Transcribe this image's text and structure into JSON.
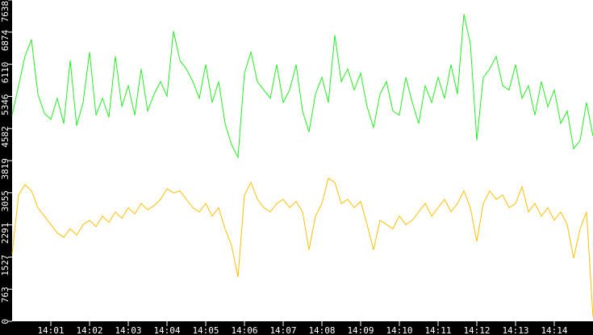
{
  "chart_data": {
    "type": "line",
    "title": "",
    "xlabel": "",
    "ylabel": "",
    "xlim": [
      "14:00:00",
      "14:15:00"
    ],
    "ylim": [
      0,
      7638
    ],
    "grid": false,
    "background": "#ffffff",
    "axis_color": "#000000",
    "x_ticks": [
      "14:01",
      "14:02",
      "14:03",
      "14:04",
      "14:05",
      "14:06",
      "14:07",
      "14:08",
      "14:09",
      "14:10",
      "14:11",
      "14:12",
      "14:13",
      "14:14"
    ],
    "y_ticks": [
      "0",
      "763",
      "1527",
      "2291",
      "3055",
      "3819",
      "4582",
      "5346",
      "6110",
      "6874",
      "7638"
    ],
    "series": [
      {
        "color": "#22ee22",
        "values": [
          4900,
          5600,
          6300,
          6700,
          5400,
          4950,
          4800,
          5300,
          4700,
          6200,
          4650,
          5200,
          6400,
          4900,
          5300,
          4850,
          6300,
          5100,
          5600,
          4900,
          6000,
          5000,
          5400,
          5700,
          5350,
          6900,
          6200,
          6000,
          5700,
          5300,
          6100,
          5200,
          5700,
          4700,
          4200,
          3900,
          5900,
          6400,
          5700,
          5500,
          5300,
          6100,
          5200,
          5500,
          6100,
          5000,
          4500,
          5400,
          5800,
          5200,
          6800,
          5700,
          6000,
          5500,
          5900,
          5100,
          4600,
          5400,
          5700,
          5000,
          4900,
          5800,
          5200,
          4700,
          5600,
          5200,
          5800,
          5300,
          6100,
          5400,
          7300,
          6600,
          4300,
          5800,
          6000,
          6300,
          5600,
          5500,
          6100,
          5300,
          5600,
          4900,
          5700,
          5100,
          5500,
          4700,
          5000,
          4100,
          4300,
          5200,
          4400
        ]
      },
      {
        "color": "#ffc000",
        "values": [
          1600,
          3000,
          3250,
          3100,
          2700,
          2500,
          2300,
          2100,
          2000,
          2200,
          2050,
          2300,
          2400,
          2250,
          2500,
          2350,
          2600,
          2450,
          2700,
          2550,
          2800,
          2650,
          2750,
          2900,
          3150,
          3050,
          3100,
          2900,
          2700,
          2600,
          2800,
          2500,
          2700,
          2200,
          1800,
          1050,
          3000,
          3300,
          2900,
          2700,
          2600,
          2800,
          2900,
          2700,
          2850,
          2600,
          1700,
          2500,
          2800,
          3400,
          3300,
          2800,
          2900,
          2700,
          2850,
          2300,
          1700,
          2400,
          2300,
          2200,
          2500,
          2300,
          2400,
          2600,
          2800,
          2500,
          2700,
          2900,
          2600,
          2800,
          3100,
          2700,
          1900,
          2800,
          3100,
          2900,
          3000,
          2700,
          2800,
          3200,
          2600,
          2800,
          2500,
          2700,
          2400,
          2600,
          2300,
          1500,
          2200,
          2600,
          100
        ]
      }
    ]
  }
}
